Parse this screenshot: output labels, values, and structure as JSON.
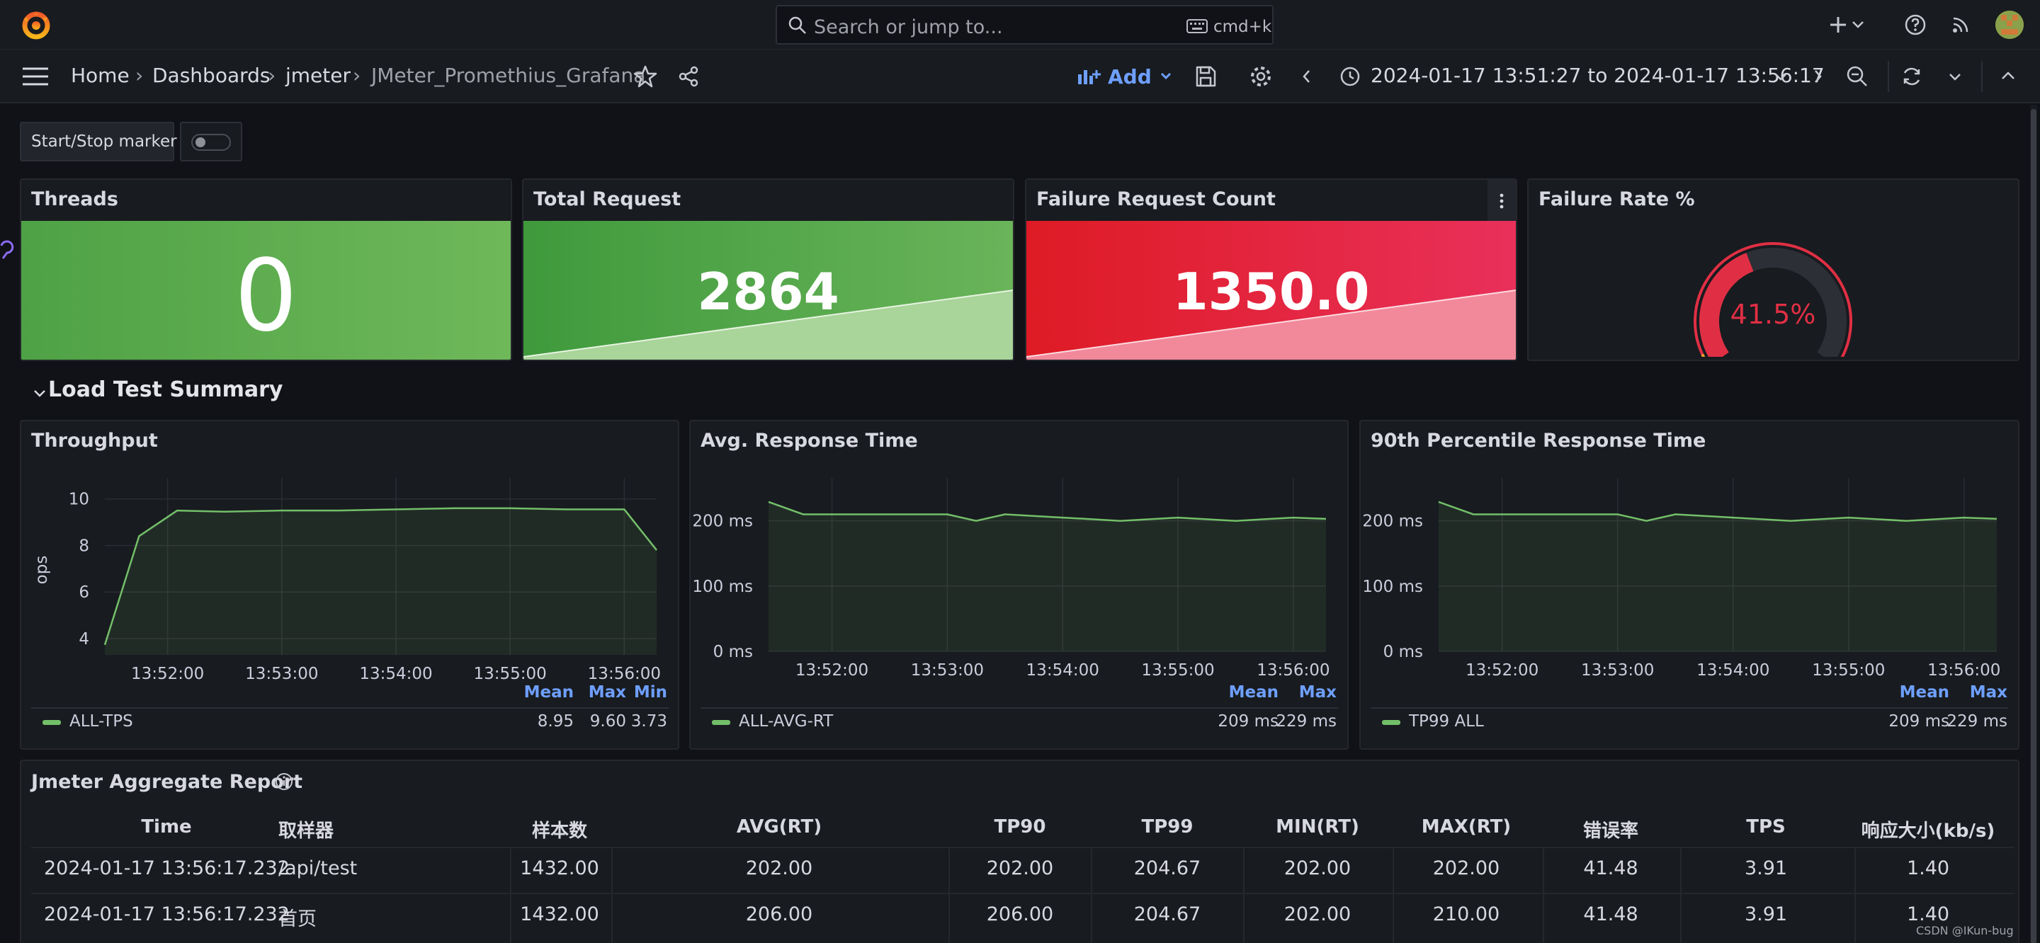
{
  "topbar": {
    "search_placeholder": "Search or jump to...",
    "search_shortcut": "cmd+k",
    "icons": [
      "grafana-logo-icon",
      "search-icon",
      "keyboard-icon",
      "plus-icon",
      "chevron-down-icon",
      "help-icon",
      "rss-icon",
      "avatar"
    ]
  },
  "nav": {
    "breadcrumbs": [
      "Home",
      "Dashboards",
      "jmeter",
      "JMeter_Promethius_Grafana"
    ],
    "add_label": "Add",
    "time_range": "2024-01-17 13:51:27 to 2024-01-17 13:56:17"
  },
  "controls": {
    "marker_label": "Start/Stop marker",
    "marker_on": false
  },
  "stats": {
    "threads": {
      "title": "Threads",
      "value": "0",
      "color": "#56a64b"
    },
    "total_request": {
      "title": "Total Request",
      "value": "2864",
      "color": "#56a64b"
    },
    "failure_count": {
      "title": "Failure Request Count",
      "value": "1350.0",
      "color": "#e02f44"
    },
    "failure_rate": {
      "title": "Failure Rate %",
      "value": "41.5%",
      "fraction": 0.415,
      "color": "#e02f44"
    }
  },
  "row": {
    "title": "Load Test Summary"
  },
  "charts": {
    "throughput": {
      "title": "Throughput",
      "ylabel": "ops",
      "yticks": [
        "10",
        "8",
        "6",
        "4"
      ],
      "xticks": [
        "13:52:00",
        "13:53:00",
        "13:54:00",
        "13:55:00",
        "13:56:00"
      ],
      "legend_headers": [
        "Mean",
        "Max",
        "Min"
      ],
      "series_name": "ALL-TPS",
      "legend_values": [
        "8.95",
        "9.60",
        "3.73"
      ]
    },
    "avg_rt": {
      "title": "Avg. Response Time",
      "yticks": [
        "200 ms",
        "100 ms",
        "0 ms"
      ],
      "xticks": [
        "13:52:00",
        "13:53:00",
        "13:54:00",
        "13:55:00",
        "13:56:00"
      ],
      "legend_headers": [
        "Mean",
        "Max"
      ],
      "series_name": "ALL-AVG-RT",
      "legend_values": [
        "209 ms",
        "229 ms"
      ]
    },
    "p90_rt": {
      "title": "90th Percentile Response Time",
      "yticks": [
        "200 ms",
        "100 ms",
        "0 ms"
      ],
      "xticks": [
        "13:52:00",
        "13:53:00",
        "13:54:00",
        "13:55:00",
        "13:56:00"
      ],
      "legend_headers": [
        "Mean",
        "Max"
      ],
      "series_name": "TP99 ALL",
      "legend_values": [
        "209 ms",
        "229 ms"
      ]
    }
  },
  "chart_data": [
    {
      "type": "line",
      "x": [
        "13:51:27",
        "13:51:45",
        "13:52:05",
        "13:52:30",
        "13:53:00",
        "13:53:30",
        "13:54:00",
        "13:54:30",
        "13:55:00",
        "13:55:30",
        "13:56:00",
        "13:56:17"
      ],
      "series": [
        {
          "name": "ALL-TPS",
          "values": [
            3.73,
            8.4,
            9.5,
            9.45,
            9.5,
            9.5,
            9.55,
            9.6,
            9.6,
            9.55,
            9.55,
            7.8
          ]
        }
      ],
      "ylabel": "ops",
      "ylim": [
        3.3,
        10.6
      ]
    },
    {
      "type": "line",
      "x": [
        "13:51:27",
        "13:51:45",
        "13:52:05",
        "13:52:30",
        "13:53:00",
        "13:53:15",
        "13:53:30",
        "13:54:00",
        "13:54:30",
        "13:55:00",
        "13:55:30",
        "13:56:00",
        "13:56:17"
      ],
      "series": [
        {
          "name": "ALL-AVG-RT",
          "values": [
            229,
            210,
            210,
            210,
            210,
            200,
            210,
            205,
            200,
            205,
            200,
            205,
            203
          ]
        }
      ],
      "ylim": [
        0,
        255
      ]
    },
    {
      "type": "line",
      "x": [
        "13:51:27",
        "13:51:45",
        "13:52:05",
        "13:52:30",
        "13:53:00",
        "13:53:15",
        "13:53:30",
        "13:54:00",
        "13:54:30",
        "13:55:00",
        "13:55:30",
        "13:56:00",
        "13:56:17"
      ],
      "series": [
        {
          "name": "TP99 ALL",
          "values": [
            229,
            210,
            210,
            210,
            210,
            200,
            210,
            205,
            200,
            205,
            200,
            205,
            203
          ]
        }
      ],
      "ylim": [
        0,
        255
      ]
    }
  ],
  "report": {
    "title": "Jmeter Aggregate Report",
    "columns": [
      "Time",
      "取样器",
      "样本数",
      "AVG(RT)",
      "TP90",
      "TP99",
      "MIN(RT)",
      "MAX(RT)",
      "错误率",
      "TPS",
      "响应大小(kb/s)"
    ],
    "rows": [
      [
        "2024-01-17 13:56:17.232",
        "/api/test",
        "1432.00",
        "202.00",
        "202.00",
        "204.67",
        "202.00",
        "202.00",
        "41.48",
        "3.91",
        "1.40"
      ],
      [
        "2024-01-17 13:56:17.232",
        "首页",
        "1432.00",
        "206.00",
        "206.00",
        "204.67",
        "202.00",
        "210.00",
        "41.48",
        "3.91",
        "1.40"
      ]
    ]
  },
  "watermark": "CSDN @IKun-bug"
}
